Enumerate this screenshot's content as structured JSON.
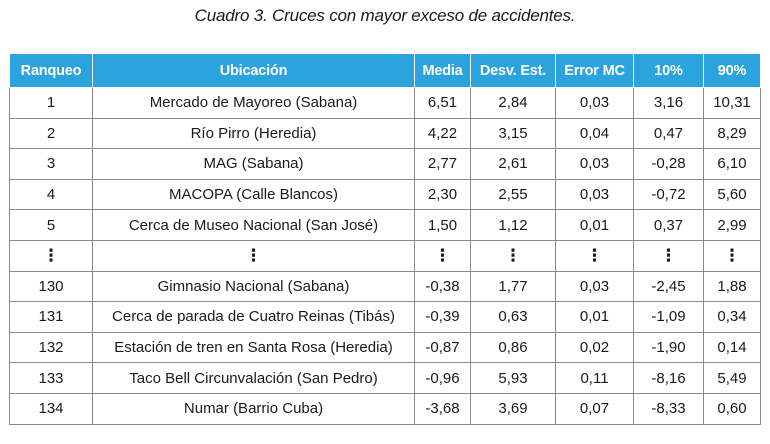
{
  "caption": "Cuadro 3. Cruces con mayor exceso de accidentes.",
  "table": {
    "columns": [
      "Ranqueo",
      "Ubicación",
      "Media",
      "Desv. Est.",
      "Error MC",
      "10%",
      "90%"
    ],
    "rows": [
      [
        "1",
        "Mercado de Mayoreo (Sabana)",
        "6,51",
        "2,84",
        "0,03",
        "3,16",
        "10,31"
      ],
      [
        "2",
        "Río Pirro (Heredia)",
        "4,22",
        "3,15",
        "0,04",
        "0,47",
        "8,29"
      ],
      [
        "3",
        "MAG (Sabana)",
        "2,77",
        "2,61",
        "0,03",
        "-0,28",
        "6,10"
      ],
      [
        "4",
        "MACOPA (Calle Blancos)",
        "2,30",
        "2,55",
        "0,03",
        "-0,72",
        "5,60"
      ],
      [
        "5",
        "Cerca de Museo Nacional (San José)",
        "1,50",
        "1,12",
        "0,01",
        "0,37",
        "2,99"
      ],
      [
        "⋮",
        "⋮",
        "⋮",
        "⋮",
        "⋮",
        "⋮",
        "⋮"
      ],
      [
        "130",
        "Gimnasio Nacional (Sabana)",
        "-0,38",
        "1,77",
        "0,03",
        "-2,45",
        "1,88"
      ],
      [
        "131",
        "Cerca de parada de Cuatro Reinas (Tibás)",
        "-0,39",
        "0,63",
        "0,01",
        "-1,09",
        "0,34"
      ],
      [
        "132",
        "Estación de tren en Santa Rosa (Heredia)",
        "-0,87",
        "0,86",
        "0,02",
        "-1,90",
        "0,14"
      ],
      [
        "133",
        "Taco Bell Circunvalación (San Pedro)",
        "-0,96",
        "5,93",
        "0,11",
        "-8,16",
        "5,49"
      ],
      [
        "134",
        "Numar (Barrio Cuba)",
        "-3,68",
        "3,69",
        "0,07",
        "-8,33",
        "0,60"
      ]
    ]
  }
}
